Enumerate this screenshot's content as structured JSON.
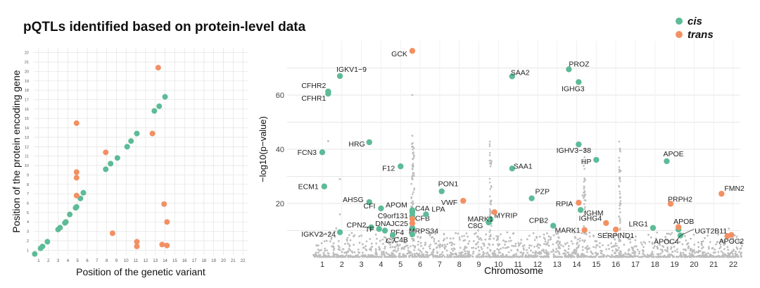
{
  "title": "pQTLs identified based on protein-level data",
  "legend": [
    {
      "name": "cis",
      "color": "#5DBB97"
    },
    {
      "name": "trans",
      "color": "#F29063"
    }
  ],
  "colors": {
    "cis": "#5DBB97",
    "trans": "#F29063",
    "background_points": "#BDBDBD",
    "grid": "#E6E6E6"
  },
  "chart_data": [
    {
      "type": "scatter",
      "xlabel": "Position of the genetic variant",
      "ylabel": "Position of the protein encoding gene",
      "x_ticks": [
        "1",
        "2",
        "3",
        "4",
        "5",
        "6",
        "7",
        "8",
        "9",
        "10",
        "11",
        "12",
        "13",
        "14",
        "15",
        "16",
        "17",
        "18",
        "19",
        "20",
        "21",
        "22"
      ],
      "y_ticks": [
        "1",
        "2",
        "3",
        "4",
        "5",
        "6",
        "7",
        "8",
        "9",
        "10",
        "11",
        "12",
        "13",
        "14",
        "15",
        "16",
        "17",
        "18",
        "19",
        "20",
        "21",
        "22"
      ],
      "xlim": [
        0.5,
        22.5
      ],
      "ylim": [
        0.5,
        22.5
      ],
      "grid": true,
      "series": [
        {
          "name": "cis",
          "points": [
            [
              0.6,
              0.6
            ],
            [
              1.2,
              1.2
            ],
            [
              1.4,
              1.4
            ],
            [
              1.9,
              1.9
            ],
            [
              3.0,
              3.2
            ],
            [
              3.2,
              3.4
            ],
            [
              3.7,
              3.9
            ],
            [
              3.8,
              4.0
            ],
            [
              4.2,
              4.8
            ],
            [
              4.8,
              5.5
            ],
            [
              4.9,
              5.6
            ],
            [
              5.3,
              6.5
            ],
            [
              5.6,
              7.1
            ],
            [
              7.9,
              9.6
            ],
            [
              8.4,
              10.2
            ],
            [
              9.1,
              10.8
            ],
            [
              10.1,
              12.0
            ],
            [
              10.5,
              12.6
            ],
            [
              11.1,
              13.4
            ],
            [
              12.9,
              15.8
            ],
            [
              13.4,
              16.3
            ],
            [
              14.0,
              17.3
            ]
          ]
        },
        {
          "name": "trans",
          "points": [
            [
              4.9,
              6.8
            ],
            [
              4.9,
              8.7
            ],
            [
              4.9,
              9.3
            ],
            [
              4.9,
              14.5
            ],
            [
              7.9,
              11.4
            ],
            [
              8.6,
              2.8
            ],
            [
              11.1,
              1.4
            ],
            [
              11.1,
              1.9
            ],
            [
              12.7,
              13.4
            ],
            [
              13.3,
              20.4
            ],
            [
              13.7,
              1.6
            ],
            [
              13.9,
              5.9
            ],
            [
              14.2,
              4.0
            ],
            [
              14.2,
              1.5
            ]
          ]
        }
      ]
    },
    {
      "type": "scatter",
      "xlabel": "Chromosome",
      "ylabel": "−log10(p−value)",
      "x_ticks": [
        "1",
        "2",
        "3",
        "4",
        "5",
        "6",
        "7",
        "8",
        "9",
        "10",
        "11",
        "12",
        "13",
        "14",
        "15",
        "16",
        "17",
        "18",
        "19",
        "20",
        "21",
        "22"
      ],
      "y_ticks": [
        "20",
        "40",
        "60"
      ],
      "ylim": [
        0,
        80
      ],
      "grid": true,
      "series": [
        {
          "name": "cis",
          "points": [
            {
              "chr": 1.0,
              "y": 38.9,
              "label": "FCN3"
            },
            {
              "chr": 1.1,
              "y": 26.3,
              "label": "ECM1"
            },
            {
              "chr": 1.3,
              "y": 61.3,
              "label": "CFHR2"
            },
            {
              "chr": 1.3,
              "y": 60.5,
              "label": "CFHR1"
            },
            {
              "chr": 1.9,
              "y": 67.0,
              "label": "IGKV1−9"
            },
            {
              "chr": 1.9,
              "y": 9.4,
              "label": "IGKV2−24"
            },
            {
              "chr": 3.4,
              "y": 42.6,
              "label": "HRG"
            },
            {
              "chr": 3.4,
              "y": 20.5,
              "label": "AHSG"
            },
            {
              "chr": 3.5,
              "y": 11.2,
              "label": "CPN2"
            },
            {
              "chr": 3.9,
              "y": 10.6,
              "label": "TF"
            },
            {
              "chr": 4.0,
              "y": 18.2,
              "label": "CFI"
            },
            {
              "chr": 4.2,
              "y": 10.0,
              "label": "PF4"
            },
            {
              "chr": 4.6,
              "y": 8.4,
              "label": "C7"
            },
            {
              "chr": 5.0,
              "y": 33.7,
              "label": "F12"
            },
            {
              "chr": 5.6,
              "y": 17.5,
              "label": "APOM"
            },
            {
              "chr": 5.6,
              "y": 16.7,
              "label": "C4A"
            },
            {
              "chr": 5.6,
              "y": 15.4,
              "label": "CFB"
            },
            {
              "chr": 5.6,
              "y": 11.0,
              "label": "MRPS34"
            },
            {
              "chr": 5.6,
              "y": 8.6,
              "label": "C4B"
            },
            {
              "chr": 6.3,
              "y": 16.0,
              "label": "LPA"
            },
            {
              "chr": 7.1,
              "y": 24.5,
              "label": "PON1"
            },
            {
              "chr": 9.5,
              "y": 13.0,
              "label": "C8G"
            },
            {
              "chr": 9.6,
              "y": 14.2,
              "label": "MYRIP"
            },
            {
              "chr": 10.7,
              "y": 66.9,
              "label": "SAA2"
            },
            {
              "chr": 10.7,
              "y": 32.9,
              "label": "SAA1"
            },
            {
              "chr": 11.7,
              "y": 21.9,
              "label": "PZP"
            },
            {
              "chr": 12.8,
              "y": 11.8,
              "label": "CPB2"
            },
            {
              "chr": 13.6,
              "y": 69.5,
              "label": "PROZ"
            },
            {
              "chr": 14.1,
              "y": 64.8,
              "label": "IGHG3"
            },
            {
              "chr": 14.1,
              "y": 41.8,
              "label": "IGHV3−38"
            },
            {
              "chr": 14.2,
              "y": 17.6,
              "label": "IGHM"
            },
            {
              "chr": 15.0,
              "y": 36.1,
              "label": "HP"
            },
            {
              "chr": 17.9,
              "y": 11.0,
              "label": "LRG1"
            },
            {
              "chr": 18.6,
              "y": 35.6,
              "label": "APOE"
            },
            {
              "chr": 19.2,
              "y": 10.4,
              "label": "APOB"
            },
            {
              "chr": 19.3,
              "y": 8.2,
              "label": "APOC4"
            }
          ]
        },
        {
          "name": "trans",
          "points": [
            {
              "chr": 5.6,
              "y": 76.3,
              "label": "GCK"
            },
            {
              "chr": 5.6,
              "y": 14.3,
              "label": "C9orf131"
            },
            {
              "chr": 5.6,
              "y": 12.7,
              "label": "DNAJC25"
            },
            {
              "chr": 8.2,
              "y": 21.0,
              "label": "VWF"
            },
            {
              "chr": 9.8,
              "y": 16.8,
              "label": "MARK1"
            },
            {
              "chr": 14.1,
              "y": 20.3,
              "label": "RPIA"
            },
            {
              "chr": 14.4,
              "y": 10.2,
              "label": "MARK1 "
            },
            {
              "chr": 15.5,
              "y": 12.8,
              "label": "IGHG4"
            },
            {
              "chr": 16.0,
              "y": 10.4,
              "label": "SERPIND1"
            },
            {
              "chr": 18.8,
              "y": 19.9,
              "label": "PRPH2"
            },
            {
              "chr": 19.2,
              "y": 11.3,
              "label": "APOB "
            },
            {
              "chr": 21.4,
              "y": 23.6,
              "label": "FMN2"
            },
            {
              "chr": 21.9,
              "y": 8.4,
              "label": "UGT2B11"
            },
            {
              "chr": 21.7,
              "y": 8.0,
              "label": "APOC2"
            }
          ]
        }
      ]
    }
  ]
}
